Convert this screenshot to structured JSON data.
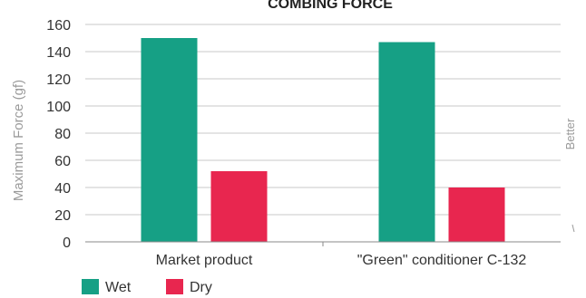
{
  "chart_data": {
    "type": "bar",
    "title": "COMBING FORCE",
    "ylabel": "Maximum Force (gf)",
    "side_label": "Better",
    "categories": [
      "Market product",
      "\"Green\" conditioner C-132"
    ],
    "series": [
      {
        "name": "Wet",
        "values": [
          150,
          147
        ],
        "color": "#16a085"
      },
      {
        "name": "Dry",
        "values": [
          52,
          40
        ],
        "color": "#e8264f"
      }
    ],
    "ylim": [
      0,
      160
    ],
    "yticks": [
      0,
      20,
      40,
      60,
      80,
      100,
      120,
      140,
      160
    ],
    "grid": true,
    "legend": "bottom-left"
  }
}
